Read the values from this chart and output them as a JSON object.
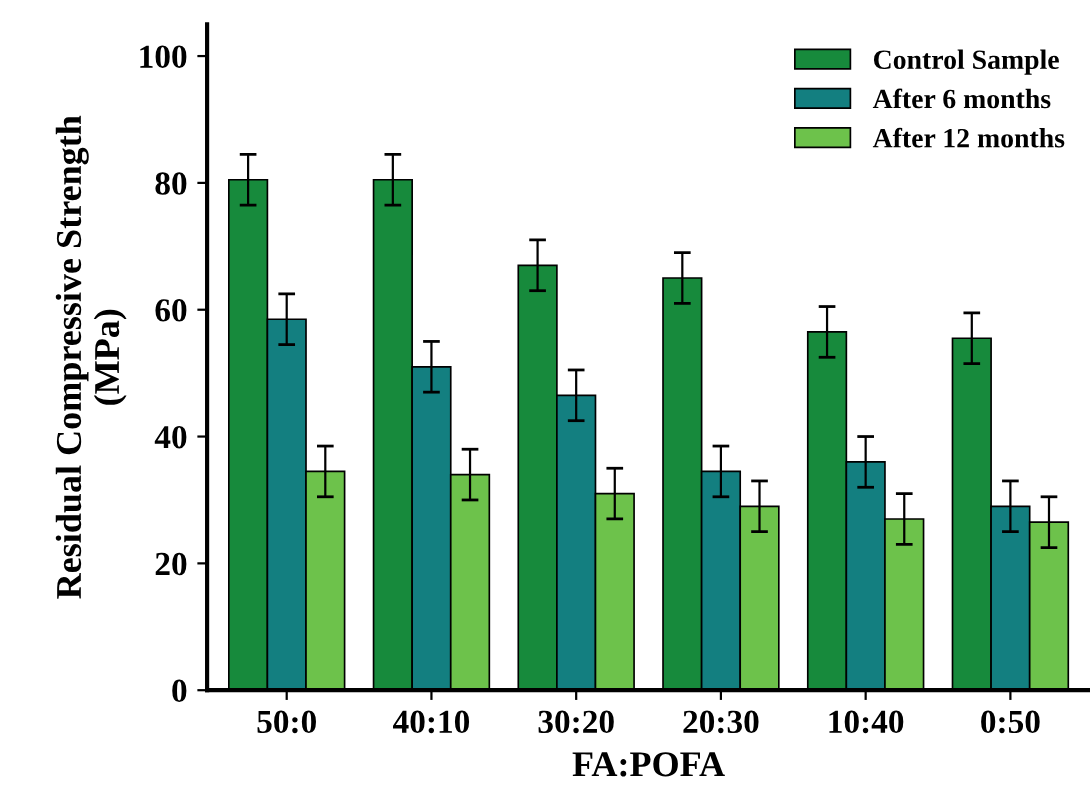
{
  "chart_data": {
    "type": "bar",
    "xlabel": "FA:POFA",
    "ylabel": "Residual Compressive Strength\n(MPa)",
    "categories": [
      "50:0",
      "40:10",
      "30:20",
      "20:30",
      "10:40",
      "0:50"
    ],
    "series": [
      {
        "name": "Control Sample",
        "color": "#178a3c",
        "values": [
          80.5,
          80.5,
          67,
          65,
          56.5,
          55.5
        ],
        "errors": [
          4,
          4,
          4,
          4,
          4,
          4
        ]
      },
      {
        "name": "After 6 months",
        "color": "#137f80",
        "values": [
          58.5,
          51,
          46.5,
          34.5,
          36,
          29
        ],
        "errors": [
          4,
          4,
          4,
          4,
          4,
          4
        ]
      },
      {
        "name": "After 12 months",
        "color": "#6dc24b",
        "values": [
          34.5,
          34,
          31,
          29,
          27,
          26.5
        ],
        "errors": [
          4,
          4,
          4,
          4,
          4,
          4
        ]
      }
    ],
    "ylim": [
      0,
      105
    ],
    "yticks": [
      0,
      20,
      40,
      60,
      80,
      100
    ],
    "grid": false,
    "legend": "top right"
  }
}
